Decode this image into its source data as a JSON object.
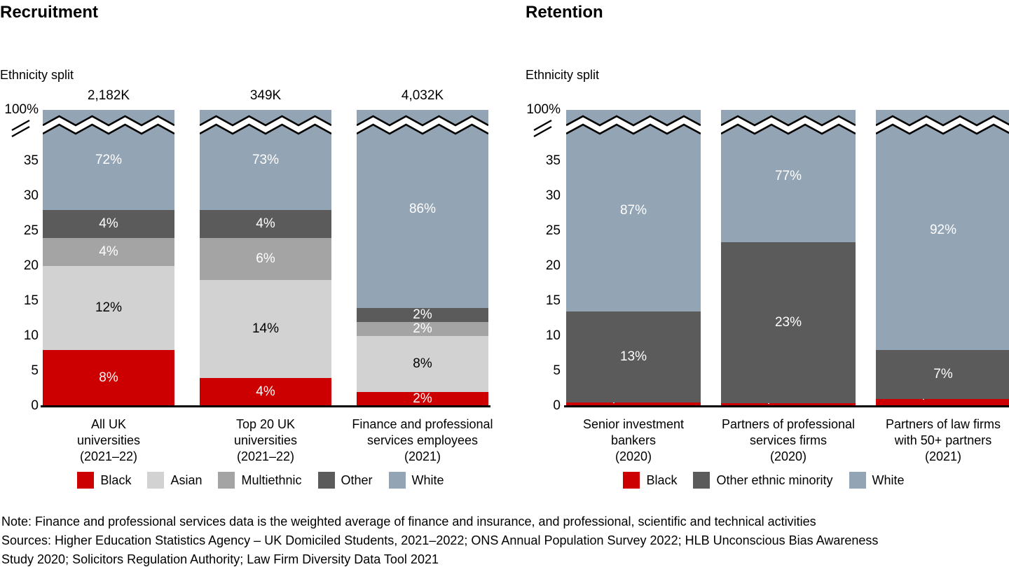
{
  "page": {
    "background": "#ffffff",
    "axis_color": "#000000"
  },
  "panels": [
    {
      "title": "Recruitment",
      "subtitle": "Ethnicity split"
    },
    {
      "title": "Retention",
      "subtitle": "Ethnicity split"
    }
  ],
  "chart_data": [
    {
      "type": "bar",
      "stacked": true,
      "unit": "%",
      "title": "Recruitment",
      "subtitle": "Ethnicity split",
      "broken_axis": {
        "visible_range": [
          0,
          38
        ],
        "top_tick_label": "100%"
      },
      "yticks": [
        "35",
        "30",
        "25",
        "20",
        "15",
        "10",
        "5",
        "0"
      ],
      "grid": false,
      "legend_position": "bottom",
      "totals": [
        "2,182K",
        "349K",
        "4,032K"
      ],
      "categories": [
        [
          "All UK",
          "universities",
          "(2021–22)"
        ],
        [
          "Top 20 UK",
          "universities",
          "(2021–22)"
        ],
        [
          "Finance and professional",
          "services employees",
          "(2021)"
        ]
      ],
      "series": [
        {
          "name": "Black",
          "color": "#cc0000",
          "label_color": "#ffffff",
          "values": [
            8,
            4,
            2
          ],
          "labels": [
            "8%",
            "4%",
            "2%"
          ]
        },
        {
          "name": "Asian",
          "color": "#d2d2d2",
          "label_color": "#000000",
          "values": [
            12,
            14,
            8
          ],
          "labels": [
            "12%",
            "14%",
            "8%"
          ]
        },
        {
          "name": "Multiethnic",
          "color": "#a4a4a4",
          "label_color": "#ffffff",
          "values": [
            4,
            6,
            2
          ],
          "labels": [
            "4%",
            "6%",
            "2%"
          ]
        },
        {
          "name": "Other",
          "color": "#5b5b5b",
          "label_color": "#ffffff",
          "values": [
            4,
            4,
            2
          ],
          "labels": [
            "4%",
            "4%",
            "2%"
          ]
        },
        {
          "name": "White",
          "color": "#93a4b4",
          "label_color": "#ffffff",
          "values": [
            72,
            73,
            86
          ],
          "labels": [
            "72%",
            "73%",
            "86%"
          ]
        }
      ]
    },
    {
      "type": "bar",
      "stacked": true,
      "unit": "%",
      "title": "Retention",
      "subtitle": "Ethnicity split",
      "broken_axis": {
        "visible_range": [
          0,
          38
        ],
        "top_tick_label": "100%"
      },
      "yticks": [
        "35",
        "30",
        "25",
        "20",
        "15",
        "10",
        "5",
        "0"
      ],
      "grid": false,
      "legend_position": "bottom",
      "totals": null,
      "categories": [
        [
          "Senior investment",
          "bankers",
          "(2020)"
        ],
        [
          "Partners of professional",
          "services firms",
          "(2020)"
        ],
        [
          "Partners of law firms",
          "with 50+ partners",
          "(2021)"
        ]
      ],
      "series": [
        {
          "name": "Black",
          "color": "#cc0000",
          "label_color": "#ffffff",
          "values": [
            0.5,
            0.4,
            1.0
          ],
          "labels": [
            "0.5%",
            "0.4%",
            "1.0%"
          ],
          "callout": true
        },
        {
          "name": "Other ethnic minority",
          "color": "#5b5b5b",
          "label_color": "#ffffff",
          "values": [
            13,
            23,
            7
          ],
          "labels": [
            "13%",
            "23%",
            "7%"
          ]
        },
        {
          "name": "White",
          "color": "#93a4b4",
          "label_color": "#ffffff",
          "values": [
            87,
            77,
            92
          ],
          "labels": [
            "87%",
            "77%",
            "92%"
          ]
        }
      ]
    }
  ],
  "footer": {
    "lines": [
      "Note: Finance and professional services data is the weighted average of finance and insurance, and professional, scientific and technical activities",
      "Sources: Higher Education Statistics Agency – UK Domiciled Students, 2021–2022; ONS Annual Population Survey 2022; HLB Unconscious Bias Awareness",
      "Study 2020; Solicitors Regulation Authority; Law Firm Diversity Data Tool 2021"
    ]
  }
}
